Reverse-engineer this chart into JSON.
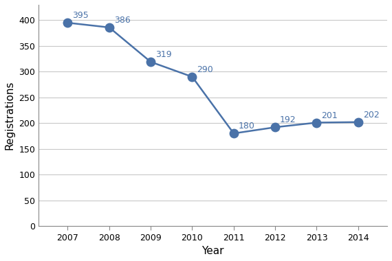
{
  "years": [
    2007,
    2008,
    2009,
    2010,
    2011,
    2012,
    2013,
    2014
  ],
  "values": [
    395,
    386,
    319,
    290,
    180,
    192,
    201,
    202
  ],
  "xlabel": "Year",
  "ylabel": "Registrations",
  "ylim": [
    0,
    430
  ],
  "yticks": [
    0,
    50,
    100,
    150,
    200,
    250,
    300,
    350,
    400
  ],
  "line_color": "#4a72a8",
  "marker_color": "#4a72a8",
  "marker_size": 9,
  "line_width": 1.8,
  "annotation_color": "#4a72a8",
  "annotation_fontsize": 9,
  "xlabel_fontsize": 11,
  "ylabel_fontsize": 11,
  "tick_fontsize": 9,
  "grid_color": "#c8c8c8",
  "background_color": "#ffffff",
  "figure_bg": "#ffffff",
  "spine_color": "#888888"
}
